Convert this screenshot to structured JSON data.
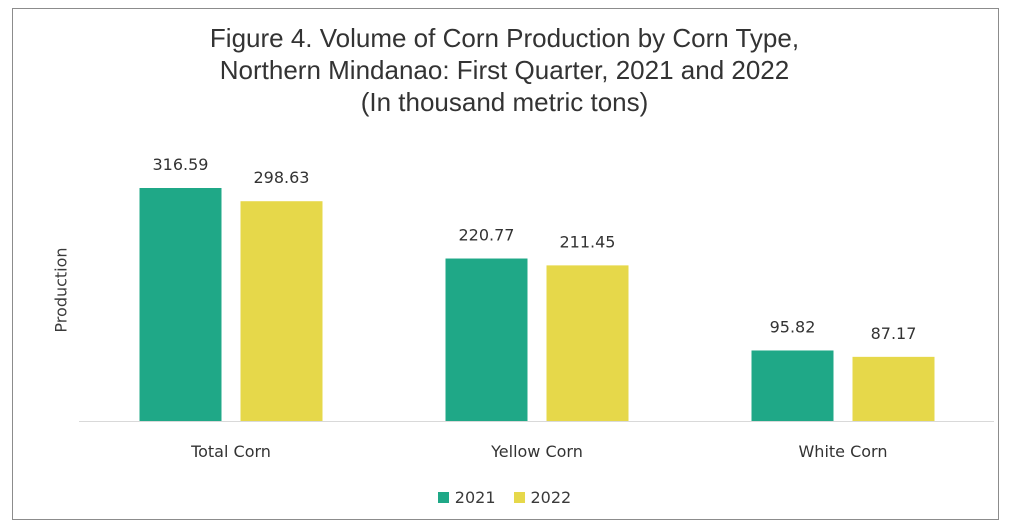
{
  "chart_data": {
    "type": "bar",
    "title_lines": [
      "Figure 4. Volume of Corn Production by Corn Type,",
      "Northern Mindanao: First Quarter, 2021 and 2022",
      "(In thousand metric tons)"
    ],
    "xlabel": "",
    "ylabel": "Production",
    "categories": [
      "Total Corn",
      "Yellow Corn",
      "White Corn"
    ],
    "series": [
      {
        "name": "2021",
        "values": [
          316.59,
          220.77,
          95.82
        ],
        "labels": [
          "316.59",
          "220.77",
          "95.82"
        ],
        "color": "#1fa887"
      },
      {
        "name": "2022",
        "values": [
          298.63,
          211.45,
          87.17
        ],
        "labels": [
          "298.63",
          "211.45",
          "87.17"
        ],
        "color": "#e6d84a"
      }
    ],
    "ylim": [
      0,
      316.59
    ],
    "grid": false,
    "legend_position": "bottom"
  }
}
